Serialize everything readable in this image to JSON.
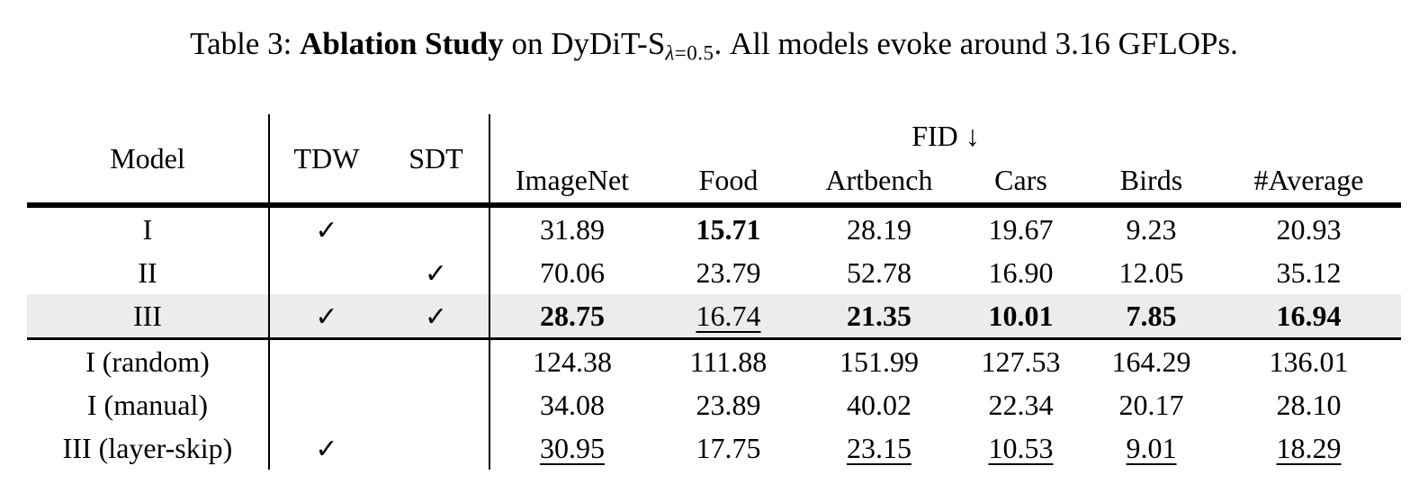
{
  "caption": {
    "prefix": "Table 3: ",
    "emphasis": "Ablation Study",
    "middle": " on DyDiT-S",
    "subscript_symbol": "λ",
    "subscript_rest": "=0.5",
    "suffix": ". All models evoke around 3.16 GFLOPs."
  },
  "table": {
    "checkmark": "✓",
    "header": {
      "model": "Model",
      "tdw": "TDW",
      "sdt": "SDT",
      "metric_group": "FID ↓",
      "datasets": [
        "ImageNet",
        "Food",
        "Artbench",
        "Cars",
        "Birds",
        "#Average"
      ]
    },
    "rows": [
      {
        "model": "I",
        "tdw": true,
        "sdt": false,
        "highlight": false,
        "rule_below": false,
        "values": [
          "31.89",
          "15.71",
          "28.19",
          "19.67",
          "9.23",
          "20.93"
        ],
        "styles": [
          "normal",
          "bold",
          "normal",
          "normal",
          "normal",
          "normal"
        ]
      },
      {
        "model": "II",
        "tdw": false,
        "sdt": true,
        "highlight": false,
        "rule_below": false,
        "values": [
          "70.06",
          "23.79",
          "52.78",
          "16.90",
          "12.05",
          "35.12"
        ],
        "styles": [
          "normal",
          "normal",
          "normal",
          "normal",
          "normal",
          "normal"
        ]
      },
      {
        "model": "III",
        "tdw": true,
        "sdt": true,
        "highlight": true,
        "rule_below": true,
        "values": [
          "28.75",
          "16.74",
          "21.35",
          "10.01",
          "7.85",
          "16.94"
        ],
        "styles": [
          "bold",
          "underline",
          "bold",
          "bold",
          "bold",
          "bold"
        ]
      },
      {
        "model": "I (random)",
        "tdw": false,
        "sdt": false,
        "highlight": false,
        "rule_below": false,
        "values": [
          "124.38",
          "111.88",
          "151.99",
          "127.53",
          "164.29",
          "136.01"
        ],
        "styles": [
          "normal",
          "normal",
          "normal",
          "normal",
          "normal",
          "normal"
        ]
      },
      {
        "model": "I (manual)",
        "tdw": false,
        "sdt": false,
        "highlight": false,
        "rule_below": false,
        "values": [
          "34.08",
          "23.89",
          "40.02",
          "22.34",
          "20.17",
          "28.10"
        ],
        "styles": [
          "normal",
          "normal",
          "normal",
          "normal",
          "normal",
          "normal"
        ]
      },
      {
        "model": "III (layer-skip)",
        "tdw": true,
        "sdt": false,
        "highlight": false,
        "rule_below": false,
        "values": [
          "30.95",
          "17.75",
          "23.15",
          "10.53",
          "9.01",
          "18.29"
        ],
        "styles": [
          "underline",
          "normal",
          "underline",
          "underline",
          "underline",
          "underline"
        ]
      }
    ]
  },
  "colors": {
    "highlight_row": "#ececec",
    "text": "#000000",
    "rule": "#000000"
  }
}
